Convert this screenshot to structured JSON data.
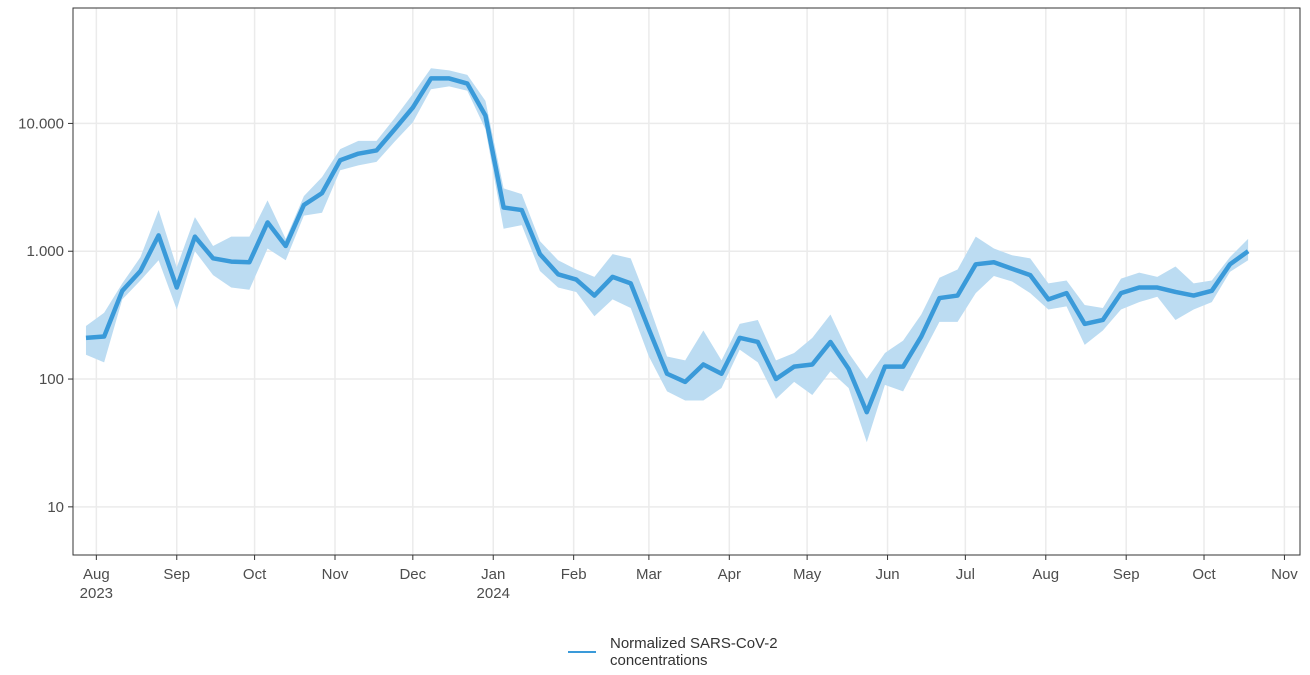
{
  "chart_data": {
    "type": "line",
    "log_y": true,
    "grid": true,
    "legend_position": "bottom",
    "x": [
      "2023-07-28",
      "2023-08-04",
      "2023-08-11",
      "2023-08-18",
      "2023-08-25",
      "2023-09-01",
      "2023-09-08",
      "2023-09-15",
      "2023-09-22",
      "2023-09-29",
      "2023-10-06",
      "2023-10-13",
      "2023-10-20",
      "2023-10-27",
      "2023-11-03",
      "2023-11-10",
      "2023-11-17",
      "2023-11-24",
      "2023-12-01",
      "2023-12-08",
      "2023-12-15",
      "2023-12-22",
      "2023-12-29",
      "2024-01-05",
      "2024-01-12",
      "2024-01-19",
      "2024-01-26",
      "2024-02-02",
      "2024-02-09",
      "2024-02-16",
      "2024-02-23",
      "2024-03-01",
      "2024-03-08",
      "2024-03-15",
      "2024-03-22",
      "2024-03-29",
      "2024-04-05",
      "2024-04-12",
      "2024-04-19",
      "2024-04-26",
      "2024-05-03",
      "2024-05-10",
      "2024-05-17",
      "2024-05-24",
      "2024-05-31",
      "2024-06-07",
      "2024-06-14",
      "2024-06-21",
      "2024-06-28",
      "2024-07-05",
      "2024-07-12",
      "2024-07-19",
      "2024-07-26",
      "2024-08-02",
      "2024-08-09",
      "2024-08-16",
      "2024-08-23",
      "2024-08-30",
      "2024-09-06",
      "2024-09-13",
      "2024-09-20",
      "2024-09-27",
      "2024-10-04",
      "2024-10-11",
      "2024-10-18"
    ],
    "series": [
      {
        "name": "Normalized SARS-CoV-2 concentrations",
        "color": "#3a9ad9",
        "band_color": "#bcdcf2",
        "values": [
          210,
          215,
          490,
          700,
          1330,
          520,
          1300,
          880,
          830,
          820,
          1680,
          1100,
          2300,
          2850,
          5150,
          5800,
          6150,
          9000,
          13300,
          22500,
          22500,
          20500,
          11500,
          2200,
          2100,
          950,
          660,
          600,
          450,
          630,
          560,
          245,
          110,
          95,
          130,
          110,
          210,
          195,
          100,
          125,
          130,
          195,
          120,
          55,
          125,
          125,
          215,
          430,
          450,
          790,
          820,
          730,
          650,
          420,
          470,
          270,
          290,
          470,
          520,
          520,
          480,
          450,
          490,
          790,
          1000
        ],
        "upper": [
          260,
          330,
          560,
          900,
          2100,
          750,
          1850,
          1100,
          1300,
          1300,
          2500,
          1250,
          2700,
          3800,
          6300,
          7300,
          7300,
          11000,
          17000,
          27000,
          26000,
          24000,
          15000,
          3100,
          2800,
          1200,
          850,
          720,
          630,
          950,
          880,
          380,
          150,
          140,
          240,
          140,
          270,
          290,
          140,
          160,
          210,
          320,
          160,
          100,
          160,
          200,
          320,
          620,
          720,
          1300,
          1050,
          930,
          880,
          560,
          590,
          380,
          360,
          610,
          680,
          630,
          760,
          560,
          590,
          900,
          1250
        ],
        "lower": [
          155,
          135,
          420,
          590,
          850,
          350,
          1000,
          650,
          520,
          500,
          1050,
          850,
          1900,
          2000,
          4300,
          4700,
          5000,
          7200,
          10200,
          18500,
          19500,
          18000,
          9000,
          1500,
          1600,
          700,
          520,
          480,
          310,
          420,
          360,
          150,
          80,
          68,
          68,
          85,
          170,
          135,
          70,
          95,
          75,
          115,
          85,
          32,
          90,
          80,
          150,
          280,
          280,
          470,
          640,
          580,
          470,
          350,
          370,
          185,
          240,
          350,
          400,
          440,
          290,
          350,
          400,
          690,
          850
        ]
      }
    ],
    "xlim": [
      "2023-07-23",
      "2024-11-07"
    ],
    "xticks": [
      {
        "value": "2023-08-01",
        "label": "Aug\n2023"
      },
      {
        "value": "2023-09-01",
        "label": "Sep"
      },
      {
        "value": "2023-10-01",
        "label": "Oct"
      },
      {
        "value": "2023-11-01",
        "label": "Nov"
      },
      {
        "value": "2023-12-01",
        "label": "Dec"
      },
      {
        "value": "2024-01-01",
        "label": "Jan\n2024"
      },
      {
        "value": "2024-02-01",
        "label": "Feb"
      },
      {
        "value": "2024-03-01",
        "label": "Mar"
      },
      {
        "value": "2024-04-01",
        "label": "Apr"
      },
      {
        "value": "2024-05-01",
        "label": "May"
      },
      {
        "value": "2024-06-01",
        "label": "Jun"
      },
      {
        "value": "2024-07-01",
        "label": "Jul"
      },
      {
        "value": "2024-08-01",
        "label": "Aug"
      },
      {
        "value": "2024-09-01",
        "label": "Sep"
      },
      {
        "value": "2024-10-01",
        "label": "Oct"
      },
      {
        "value": "2024-11-01",
        "label": "Nov"
      }
    ],
    "ylim": [
      4.2,
      80000
    ],
    "yticks": [
      10,
      100,
      {
        "value": 1000,
        "label": "1.000"
      },
      {
        "value": 10000,
        "label": "10.000"
      }
    ]
  }
}
